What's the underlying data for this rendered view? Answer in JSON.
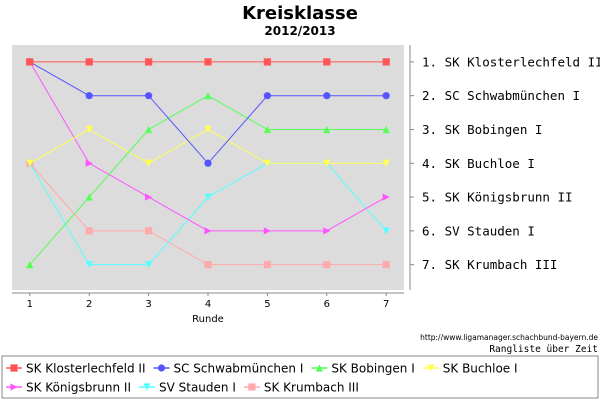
{
  "chart_data": {
    "type": "line",
    "title": "Kreisklasse",
    "subtitle": "2012/2013",
    "xlabel": "Runde",
    "ylabel": "",
    "x": [
      1,
      2,
      3,
      4,
      5,
      6,
      7
    ],
    "xlim": [
      0.7,
      7.3
    ],
    "ylim": [
      0.5,
      7.75
    ],
    "y_inverted": true,
    "grid": false,
    "legend_position": "bottom",
    "rank_labels": [
      "1. SK Klosterlechfeld II",
      "2. SC Schwabmünchen I",
      "3. SK Bobingen I",
      "4. SK Buchloe I",
      "5. SK Königsbrunn II",
      "6. SV Stauden I",
      "7. SK Krumbach III"
    ],
    "series": [
      {
        "name": "SK Klosterlechfeld II",
        "color": "#ff5555",
        "marker": "square",
        "values": [
          1,
          1,
          1,
          1,
          1,
          1,
          1
        ]
      },
      {
        "name": "SC Schwabmünchen I",
        "color": "#5555ff",
        "marker": "circle",
        "values": [
          1,
          2,
          2,
          4,
          2,
          2,
          2
        ]
      },
      {
        "name": "SK Bobingen I",
        "color": "#55ff55",
        "marker": "triangle-up",
        "values": [
          7,
          5,
          3,
          2,
          3,
          3,
          3
        ]
      },
      {
        "name": "SK Buchloe I",
        "color": "#ffff55",
        "marker": "triangle-down",
        "values": [
          4,
          3,
          4,
          3,
          4,
          4,
          4
        ]
      },
      {
        "name": "SK Königsbrunn II",
        "color": "#ff55ff",
        "marker": "triangle-right",
        "values": [
          1,
          4,
          5,
          6,
          6,
          6,
          5
        ]
      },
      {
        "name": "SV Stauden I",
        "color": "#55ffff",
        "marker": "triangle-down",
        "values": [
          4,
          7,
          7,
          5,
          4,
          4,
          6
        ]
      },
      {
        "name": "SK Krumbach III",
        "color": "#ffaaaa",
        "marker": "square",
        "values": [
          4,
          6,
          6,
          7,
          7,
          7,
          7
        ]
      }
    ],
    "source": "http://www.ligamanager.schachbund-bayern.de",
    "caption": "Rangliste über Zeit"
  }
}
